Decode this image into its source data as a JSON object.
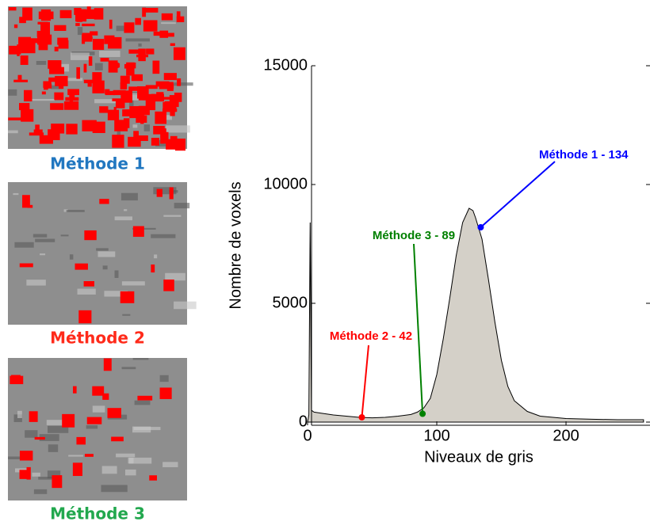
{
  "panels": [
    {
      "caption": "Méthode 1",
      "color": "#2177c0"
    },
    {
      "caption": "Méthode 2",
      "color": "#ff2a1a"
    },
    {
      "caption": "Méthode 3",
      "color": "#22a84e"
    }
  ],
  "chart_data": {
    "type": "area",
    "x_label": "Niveaux de gris",
    "y_label": "Nombre de voxels",
    "x": [
      0,
      1,
      2,
      3,
      5,
      10,
      20,
      30,
      40,
      50,
      60,
      70,
      80,
      85,
      90,
      95,
      100,
      105,
      110,
      115,
      120,
      125,
      128,
      130,
      135,
      140,
      145,
      150,
      155,
      160,
      170,
      180,
      200,
      220,
      240,
      260
    ],
    "values": [
      0,
      300,
      8400,
      500,
      420,
      380,
      300,
      250,
      200,
      180,
      200,
      250,
      320,
      420,
      600,
      1000,
      2000,
      3500,
      5200,
      7000,
      8400,
      9000,
      8900,
      8600,
      7700,
      6000,
      4200,
      2600,
      1500,
      900,
      450,
      250,
      150,
      120,
      100,
      100
    ],
    "color": "#d4d0c8",
    "xlim": [
      0,
      265
    ],
    "ylim": [
      0,
      15000
    ],
    "xticks": [
      0,
      100,
      200
    ],
    "yticks": [
      0,
      5000,
      10000,
      15000
    ],
    "annotations": [
      {
        "label": "Méthode 1 - 134",
        "x": 134,
        "y": 8200,
        "color": "#0000ff"
      },
      {
        "label": "Méthode 3 - 89",
        "x": 89,
        "y": 350,
        "color": "#008000"
      },
      {
        "label": "Méthode 2 - 42",
        "x": 42,
        "y": 200,
        "color": "#ff0000"
      }
    ]
  }
}
